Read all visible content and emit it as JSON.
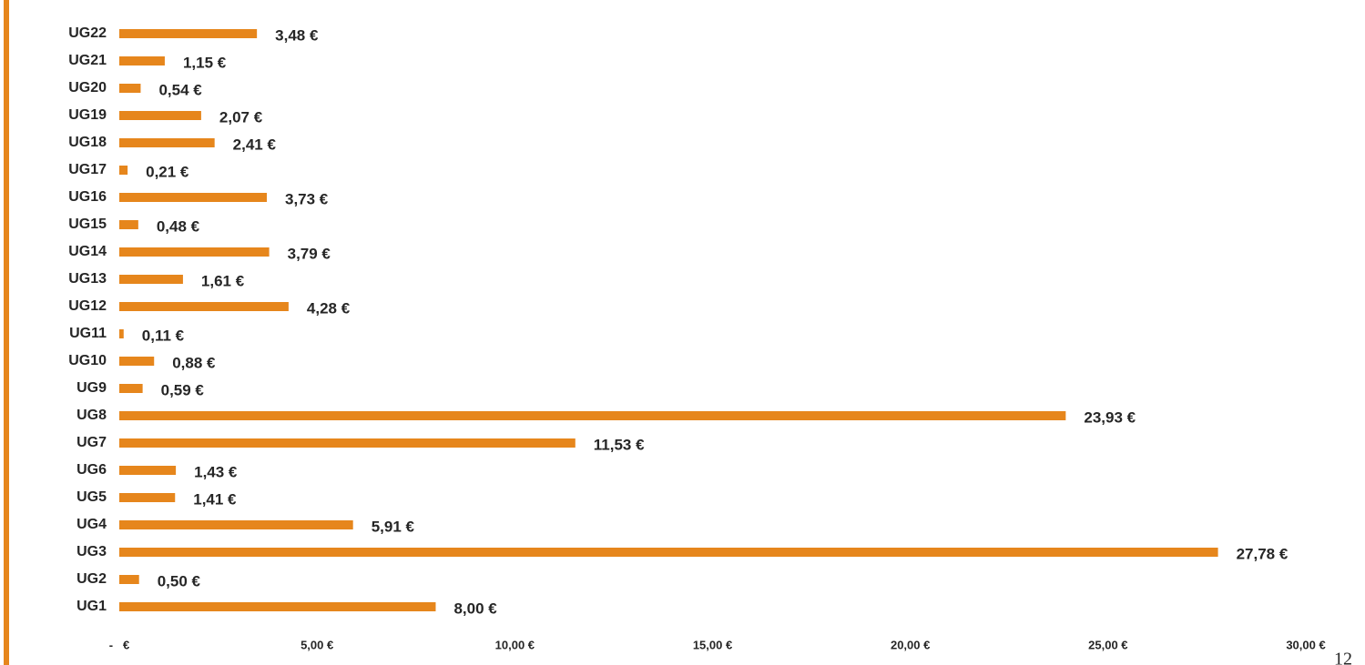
{
  "chart_data": {
    "type": "hbar",
    "categories": [
      "UG1",
      "UG2",
      "UG3",
      "UG4",
      "UG5",
      "UG6",
      "UG7",
      "UG8",
      "UG9",
      "UG10",
      "UG11",
      "UG12",
      "UG13",
      "UG14",
      "UG15",
      "UG16",
      "UG17",
      "UG18",
      "UG19",
      "UG20",
      "UG21",
      "UG22"
    ],
    "values": [
      8.0,
      0.5,
      27.78,
      5.91,
      1.41,
      1.43,
      11.53,
      23.93,
      0.59,
      0.88,
      0.11,
      4.28,
      1.61,
      3.79,
      0.48,
      3.73,
      0.21,
      2.41,
      2.07,
      0.54,
      1.15,
      3.48
    ],
    "value_labels": [
      "8,00 €",
      "0,50 €",
      "27,78 €",
      "5,91 €",
      "1,41 €",
      "1,43 €",
      "11,53 €",
      "23,93 €",
      "0,59 €",
      "0,88 €",
      "0,11 €",
      "4,28 €",
      "1,61 €",
      "3,79 €",
      "0,48 €",
      "3,73 €",
      "0,21 €",
      "2,41 €",
      "2,07 €",
      "0,54 €",
      "1,15 €",
      "3,48 €"
    ],
    "color": "#e6861c",
    "xlim": [
      0,
      30
    ],
    "xticks": [
      {
        "value": 0,
        "label": "-   €"
      },
      {
        "value": 5,
        "label": "5,00 €"
      },
      {
        "value": 10,
        "label": "10,00 €"
      },
      {
        "value": 15,
        "label": "15,00 €"
      },
      {
        "value": 20,
        "label": "20,00 €"
      },
      {
        "value": 25,
        "label": "25,00 €"
      },
      {
        "value": 30,
        "label": "30,00 €"
      }
    ],
    "grid": false
  },
  "page_number": "12"
}
